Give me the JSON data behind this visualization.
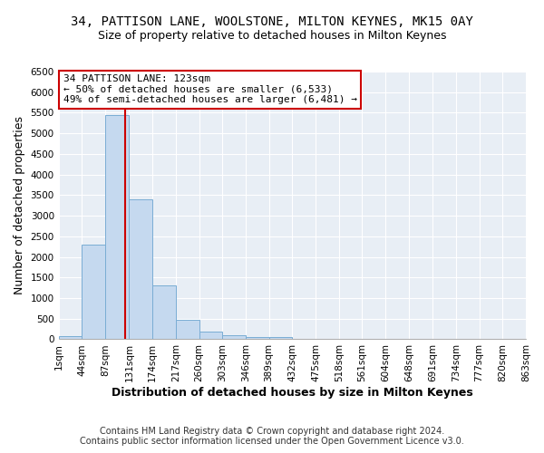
{
  "title": "34, PATTISON LANE, WOOLSTONE, MILTON KEYNES, MK15 0AY",
  "subtitle": "Size of property relative to detached houses in Milton Keynes",
  "xlabel": "Distribution of detached houses by size in Milton Keynes",
  "ylabel": "Number of detached properties",
  "bar_values": [
    70,
    2300,
    5450,
    3400,
    1310,
    480,
    195,
    90,
    50,
    50,
    0,
    0,
    0,
    0,
    0,
    0,
    0,
    0,
    0,
    0
  ],
  "bin_edges": [
    1,
    44,
    87,
    131,
    174,
    217,
    260,
    303,
    346,
    389,
    432,
    475,
    518,
    561,
    604,
    648,
    691,
    734,
    777,
    820,
    863
  ],
  "bin_labels": [
    "1sqm",
    "44sqm",
    "87sqm",
    "131sqm",
    "174sqm",
    "217sqm",
    "260sqm",
    "303sqm",
    "346sqm",
    "389sqm",
    "432sqm",
    "475sqm",
    "518sqm",
    "561sqm",
    "604sqm",
    "648sqm",
    "691sqm",
    "734sqm",
    "777sqm",
    "820sqm",
    "863sqm"
  ],
  "bar_color": "#c5d9ef",
  "bar_edge_color": "#7aadd4",
  "vline_x": 123,
  "vline_color": "#cc0000",
  "ylim": [
    0,
    6500
  ],
  "yticks": [
    0,
    500,
    1000,
    1500,
    2000,
    2500,
    3000,
    3500,
    4000,
    4500,
    5000,
    5500,
    6000,
    6500
  ],
  "annotation_title": "34 PATTISON LANE: 123sqm",
  "annotation_line1": "← 50% of detached houses are smaller (6,533)",
  "annotation_line2": "49% of semi-detached houses are larger (6,481) →",
  "annotation_box_color": "#ffffff",
  "annotation_box_edge": "#cc0000",
  "footer_line1": "Contains HM Land Registry data © Crown copyright and database right 2024.",
  "footer_line2": "Contains public sector information licensed under the Open Government Licence v3.0.",
  "bg_color": "#ffffff",
  "plot_bg_color": "#e8eef5",
  "grid_color": "#ffffff",
  "title_fontsize": 10,
  "subtitle_fontsize": 9,
  "axis_label_fontsize": 9,
  "tick_fontsize": 7.5,
  "annotation_fontsize": 8,
  "footer_fontsize": 7
}
